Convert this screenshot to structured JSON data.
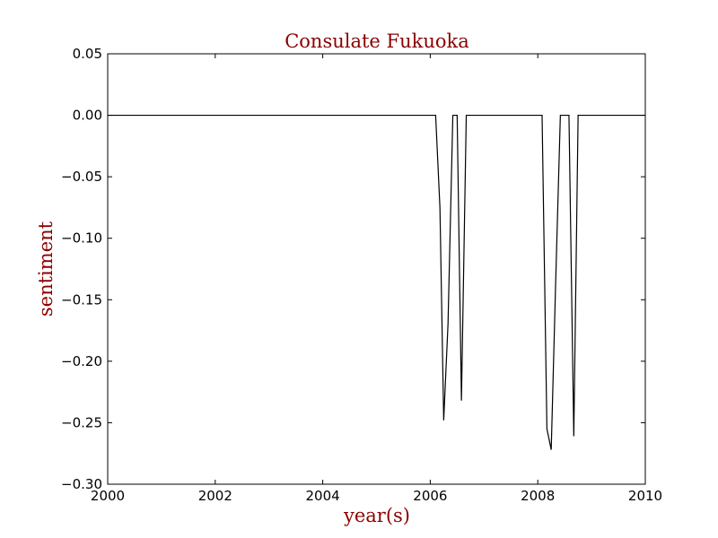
{
  "colors": {
    "accent": "#8b0000",
    "line": "#000000",
    "background": "#ffffff"
  },
  "chart_data": {
    "type": "line",
    "title": "Consulate Fukuoka",
    "xlabel": "year(s)",
    "ylabel": "sentiment",
    "xlim": [
      2000,
      2010
    ],
    "ylim": [
      -0.3,
      0.05
    ],
    "grid": false,
    "xticks": [
      2000,
      2002,
      2004,
      2006,
      2008,
      2010
    ],
    "xtick_labels": [
      "2000",
      "2002",
      "2004",
      "2006",
      "2008",
      "2010"
    ],
    "yticks": [
      0.05,
      0.0,
      -0.05,
      -0.1,
      -0.15,
      -0.2,
      -0.25,
      -0.3
    ],
    "ytick_labels": [
      "0.05",
      "0.00",
      "−0.05",
      "−0.10",
      "−0.15",
      "−0.20",
      "−0.25",
      "−0.30"
    ],
    "series": [
      {
        "x": [
          2000.0,
          2006.1,
          2006.18,
          2006.25,
          2006.33,
          2006.42,
          2006.5,
          2006.58,
          2006.67,
          2008.08,
          2008.17,
          2008.25,
          2008.33,
          2008.42,
          2008.5,
          2008.58,
          2008.67,
          2008.75,
          2010.0
        ],
        "y": [
          0.0,
          0.0,
          -0.075,
          -0.248,
          -0.17,
          0.0,
          0.0,
          -0.232,
          0.0,
          0.0,
          -0.255,
          -0.272,
          -0.14,
          0.0,
          0.0,
          0.0,
          -0.261,
          0.0,
          0.0
        ]
      }
    ]
  }
}
